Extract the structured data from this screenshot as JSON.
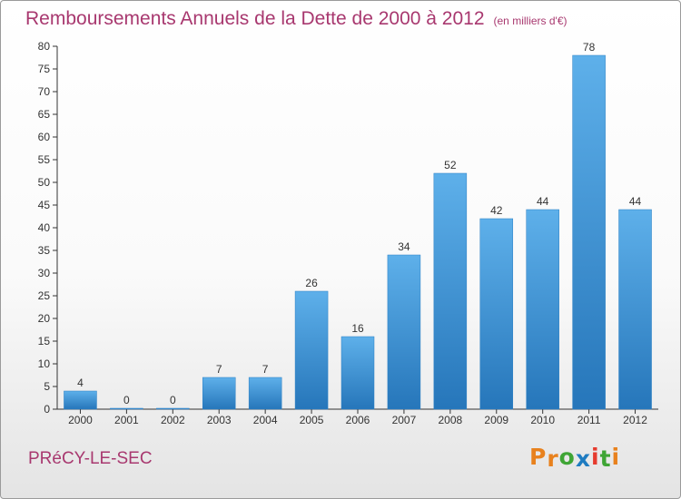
{
  "header": {
    "title": "Remboursements Annuels de la Dette de 2000 à 2012",
    "subtitle": "(en milliers d'€)"
  },
  "footer": {
    "town": "PRéCY-LE-SEC",
    "logo_letters": [
      "P",
      "r",
      "o",
      "x",
      "i",
      "t",
      "i"
    ],
    "logo_colors": [
      "#e8811d",
      "#e8811d",
      "#3fa535",
      "#1f7cc1",
      "#e63b2e",
      "#3fa535",
      "#e8811d"
    ]
  },
  "chart_data": {
    "type": "bar",
    "categories": [
      "2000",
      "2001",
      "2002",
      "2003",
      "2004",
      "2005",
      "2006",
      "2007",
      "2008",
      "2009",
      "2010",
      "2011",
      "2012"
    ],
    "values": [
      4,
      0,
      0,
      7,
      7,
      26,
      16,
      34,
      52,
      42,
      44,
      78,
      44
    ],
    "data_labels": [
      "4",
      "0",
      "0",
      "7",
      "7",
      "26",
      "16",
      "34",
      "52",
      "42",
      "44",
      "78",
      "44"
    ],
    "title": "Remboursements Annuels de la Dette de 2000 à 2012",
    "xlabel": "",
    "ylabel": "",
    "ylim": [
      0,
      80
    ],
    "yticks": [
      0,
      5,
      10,
      15,
      20,
      25,
      30,
      35,
      40,
      45,
      50,
      55,
      60,
      65,
      70,
      75,
      80
    ],
    "grid": false,
    "bar_color": "#3f95d8",
    "axis_color": "#333333"
  }
}
